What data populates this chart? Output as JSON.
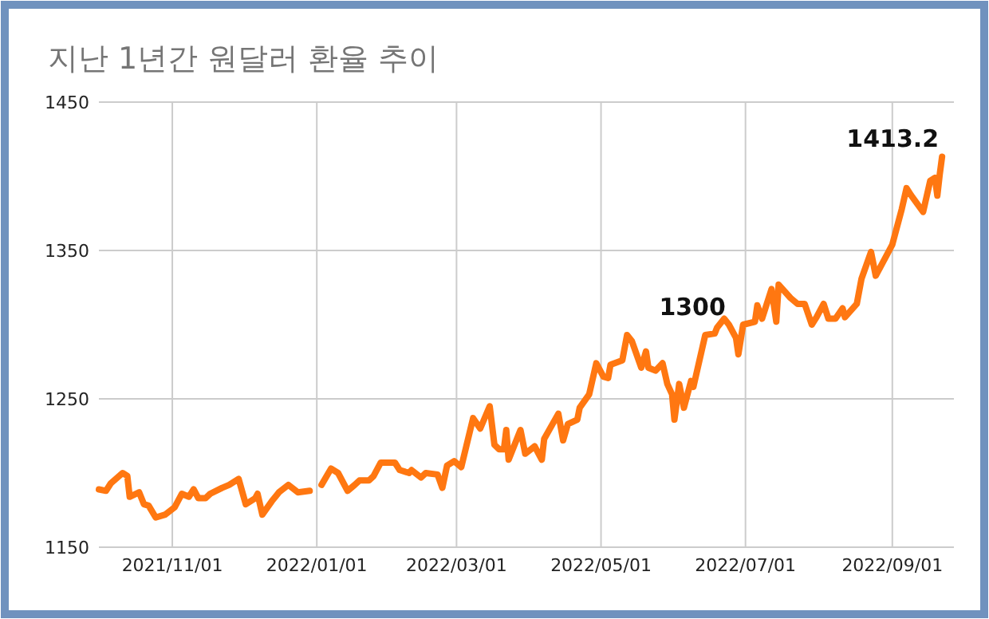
{
  "chart_data": {
    "type": "line",
    "title": "지난 1년간 원달러 환율 추이",
    "x": [
      "2021-10-01",
      "2021-10-04",
      "2021-10-06",
      "2021-10-11",
      "2021-10-13",
      "2021-10-14",
      "2021-10-18",
      "2021-10-20",
      "2021-10-22",
      "2021-10-25",
      "2021-10-29",
      "2021-11-02",
      "2021-11-05",
      "2021-11-08",
      "2021-11-10",
      "2021-11-12",
      "2021-11-15",
      "2021-11-17",
      "2021-11-22",
      "2021-11-25",
      "2021-11-29",
      "2021-12-02",
      "2021-12-06",
      "2021-12-07",
      "2021-12-09",
      "2021-12-13",
      "2021-12-15",
      "2021-12-16",
      "2021-12-20",
      "2021-12-24",
      "2021-12-29",
      "2021-12-31",
      "2022-01-03",
      "2022-01-07",
      "2022-01-10",
      "2022-01-14",
      "2022-01-17",
      "2022-01-19",
      "2022-01-23",
      "2022-01-25",
      "2022-01-28",
      "2022-02-03",
      "2022-02-05",
      "2022-02-09",
      "2022-02-10",
      "2022-02-14",
      "2022-02-16",
      "2022-02-21",
      "2022-02-23",
      "2022-02-25",
      "2022-02-28",
      "2022-03-03",
      "2022-03-08",
      "2022-03-11",
      "2022-03-15",
      "2022-03-17",
      "2022-03-19",
      "2022-03-21",
      "2022-03-22",
      "2022-03-23",
      "2022-03-28",
      "2022-03-30",
      "2022-04-03",
      "2022-04-06",
      "2022-04-07",
      "2022-04-13",
      "2022-04-15",
      "2022-04-17",
      "2022-04-21",
      "2022-04-22",
      "2022-04-26",
      "2022-04-29",
      "2022-05-02",
      "2022-05-04",
      "2022-05-05",
      "2022-05-10",
      "2022-05-12",
      "2022-05-14",
      "2022-05-18",
      "2022-05-20",
      "2022-05-21",
      "2022-05-24",
      "2022-05-27",
      "2022-05-29",
      "2022-05-31",
      "2022-06-01",
      "2022-06-03",
      "2022-06-05",
      "2022-06-08",
      "2022-06-09",
      "2022-06-14",
      "2022-06-18",
      "2022-06-19",
      "2022-06-22",
      "2022-06-24",
      "2022-06-27",
      "2022-06-28",
      "2022-06-30",
      "2022-07-05",
      "2022-07-06",
      "2022-07-08",
      "2022-07-12",
      "2022-07-14",
      "2022-07-15",
      "2022-07-20",
      "2022-07-23",
      "2022-07-26",
      "2022-07-29",
      "2022-07-31",
      "2022-08-03",
      "2022-08-05",
      "2022-08-08",
      "2022-08-11",
      "2022-08-12",
      "2022-08-17",
      "2022-08-19",
      "2022-08-23",
      "2022-08-25",
      "2022-08-29",
      "2022-09-01",
      "2022-09-05",
      "2022-09-07",
      "2022-09-09",
      "2022-09-14",
      "2022-09-17",
      "2022-09-19",
      "2022-09-20",
      "2022-09-21",
      "2022-09-22"
    ],
    "series": [
      {
        "color": "#ff7711",
        "values": [
          1189,
          1188,
          1193,
          1200,
          1198,
          1184,
          1187,
          1179,
          1178,
          1170,
          1172,
          1177,
          1186,
          1184,
          1189,
          1183,
          1183,
          1186,
          1190,
          1192,
          1196,
          1179,
          1183,
          1186,
          1172,
          1181,
          1185,
          1187,
          1192,
          1187,
          1188,
          null,
          1192,
          1203,
          1200,
          1188,
          1192,
          1195,
          1195,
          1198,
          1207,
          1207,
          1202,
          1200,
          1202,
          1197,
          1200,
          1199,
          1190,
          1205,
          1208,
          1204,
          1237,
          1230,
          1245,
          1219,
          1216,
          1216,
          1229,
          1209,
          1229,
          1213,
          1218,
          1209,
          1223,
          1240,
          1222,
          1233,
          1236,
          1244,
          1253,
          1274,
          1265,
          1264,
          1273,
          1276,
          1293,
          1289,
          1271,
          1282,
          1271,
          1269,
          1274,
          1260,
          1253,
          1236,
          1260,
          1244,
          1262,
          1258,
          1293,
          1294,
          1298,
          1304,
          1300,
          1291,
          1280,
          1300,
          1302,
          1313,
          1304,
          1324,
          1302,
          1327,
          1318,
          1314,
          1314,
          1300,
          1305,
          1314,
          1304,
          1304,
          1311,
          1305,
          1314,
          1331,
          1349,
          1333,
          1345,
          1354,
          1378,
          1392,
          1387,
          1376,
          1397,
          1399,
          1387,
          1401,
          1413.2
        ]
      }
    ],
    "xlim": [
      "2021-10-01",
      "2022-09-27"
    ],
    "xticks": [
      {
        "value": "2021-11-01",
        "label": "2021/11/01"
      },
      {
        "value": "2022-01-01",
        "label": "2022/01/01"
      },
      {
        "value": "2022-03-01",
        "label": "2022/03/01"
      },
      {
        "value": "2022-05-01",
        "label": "2022/05/01"
      },
      {
        "value": "2022-07-01",
        "label": "2022/07/01"
      },
      {
        "value": "2022-09-01",
        "label": "2022/09/01"
      }
    ],
    "ylim": [
      1150,
      1450
    ],
    "yticks": [
      1150,
      1250,
      1350,
      1450
    ],
    "grid": true,
    "annotations": [
      {
        "text": "1300",
        "x": "2022-06-24",
        "y": 1300
      },
      {
        "text": "1413.2",
        "x": "2022-09-22",
        "y": 1413.2
      }
    ]
  }
}
